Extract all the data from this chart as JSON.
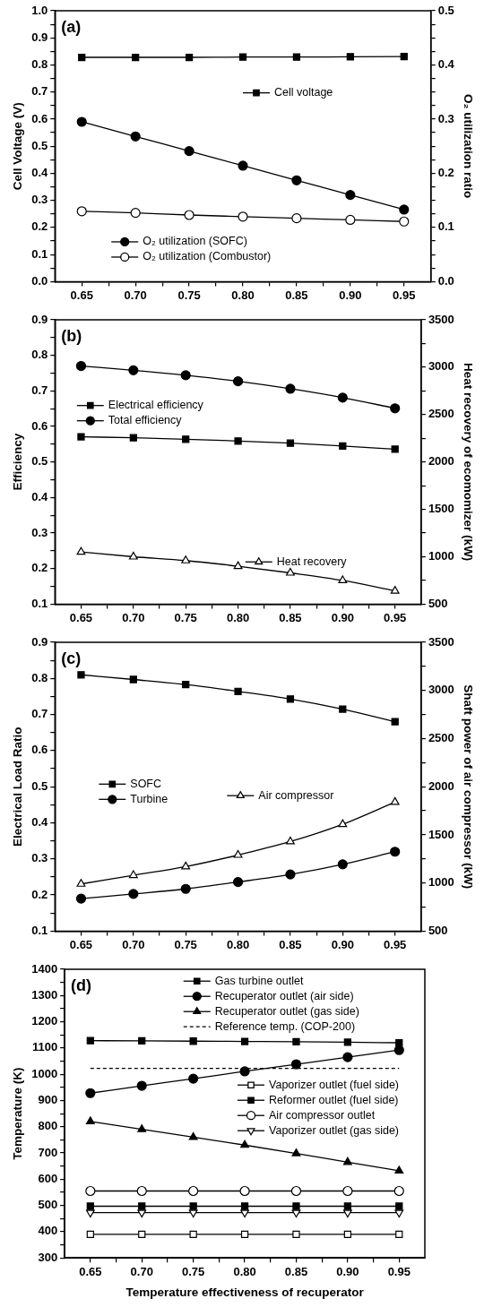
{
  "chart_data": [
    {
      "type": "line",
      "annotations": [
        "(a)"
      ],
      "ylabel": "Cell Voltage (V)",
      "y2label": "O₂ utilization ratio",
      "grid": false,
      "legend": "bottom left",
      "x": [
        0.65,
        0.7,
        0.75,
        0.8,
        0.85,
        0.9,
        0.95
      ],
      "xlim": [
        0.625,
        0.975
      ],
      "xticks": [
        0.65,
        {
          "value": 0.675,
          "label": null
        },
        {
          "value": 0.7,
          "label": "0.70"
        },
        {
          "value": 0.725,
          "label": null
        },
        0.75,
        {
          "value": 0.775,
          "label": null
        },
        {
          "value": 0.8,
          "label": "0.80"
        },
        {
          "value": 0.825,
          "label": null
        },
        0.85,
        {
          "value": 0.875,
          "label": null
        },
        {
          "value": 0.9,
          "label": "0.90"
        },
        {
          "value": 0.925,
          "label": null
        },
        0.95
      ],
      "ylim": [
        0,
        1
      ],
      "yticks": [
        {
          "value": 0,
          "label": "0.0"
        },
        {
          "value": 0.05,
          "label": null
        },
        0.1,
        {
          "value": 0.15,
          "label": null
        },
        0.2,
        {
          "value": 0.25,
          "label": null
        },
        0.3,
        {
          "value": 0.35,
          "label": null
        },
        0.4,
        {
          "value": 0.45,
          "label": null
        },
        0.5,
        {
          "value": 0.55,
          "label": null
        },
        0.6,
        {
          "value": 0.65,
          "label": null
        },
        0.7,
        {
          "value": 0.75,
          "label": null
        },
        0.8,
        {
          "value": 0.85,
          "label": null
        },
        0.9,
        {
          "value": 0.95,
          "label": null
        },
        {
          "value": 1,
          "label": "1.0"
        }
      ],
      "y2lim": [
        0,
        0.5
      ],
      "y2ticks": [
        {
          "value": 0,
          "label": "0.0"
        },
        {
          "value": 0.025,
          "label": null
        },
        {
          "value": 0.05,
          "label": null
        },
        {
          "value": 0.075,
          "label": null
        },
        0.1,
        {
          "value": 0.125,
          "label": null
        },
        {
          "value": 0.15,
          "label": null
        },
        {
          "value": 0.175,
          "label": null
        },
        0.2,
        {
          "value": 0.225,
          "label": null
        },
        {
          "value": 0.25,
          "label": null
        },
        {
          "value": 0.275,
          "label": null
        },
        0.3,
        {
          "value": 0.325,
          "label": null
        },
        {
          "value": 0.35,
          "label": null
        },
        {
          "value": 0.375,
          "label": null
        },
        0.4,
        {
          "value": 0.425,
          "label": null
        },
        {
          "value": 0.45,
          "label": null
        },
        {
          "value": 0.475,
          "label": null
        },
        0.5
      ],
      "series": [
        {
          "name": "Cell voltage",
          "color": "#000000",
          "marker": "square",
          "values": [
            0.828,
            0.828,
            0.828,
            0.829,
            0.829,
            0.83,
            0.831
          ]
        },
        {
          "name": "O₂ utilization (SOFC)",
          "color": "#000000",
          "marker": "circle",
          "axis": "y2",
          "values": [
            0.295,
            0.268,
            0.241,
            0.214,
            0.187,
            0.16,
            0.133
          ]
        },
        {
          "name": "O₂ utilization (Combustor)",
          "color": "#000000",
          "marker": "circle-open",
          "axis": "y2",
          "values": [
            0.13,
            0.127,
            0.123,
            0.12,
            0.117,
            0.114,
            0.111
          ]
        }
      ]
    },
    {
      "type": "line",
      "annotations": [
        "(b)"
      ],
      "ylabel": "Efficiency",
      "y2label": "Heat recovery of ecomomizer (kW)",
      "grid": false,
      "legend": "left",
      "x": [
        0.65,
        0.7,
        0.75,
        0.8,
        0.85,
        0.9,
        0.95
      ],
      "xlim": [
        0.625,
        0.975
      ],
      "xticks": [
        0.65,
        {
          "value": 0.675,
          "label": null
        },
        {
          "value": 0.7,
          "label": "0.70"
        },
        {
          "value": 0.725,
          "label": null
        },
        0.75,
        {
          "value": 0.775,
          "label": null
        },
        {
          "value": 0.8,
          "label": "0.80"
        },
        {
          "value": 0.825,
          "label": null
        },
        0.85,
        {
          "value": 0.875,
          "label": null
        },
        {
          "value": 0.9,
          "label": "0.90"
        },
        {
          "value": 0.925,
          "label": null
        },
        0.95
      ],
      "ylim": [
        0.1,
        0.9
      ],
      "yticks": [
        0.1,
        {
          "value": 0.15,
          "label": null
        },
        0.2,
        {
          "value": 0.25,
          "label": null
        },
        0.3,
        {
          "value": 0.35,
          "label": null
        },
        0.4,
        {
          "value": 0.45,
          "label": null
        },
        0.5,
        {
          "value": 0.55,
          "label": null
        },
        0.6,
        {
          "value": 0.65,
          "label": null
        },
        0.7,
        {
          "value": 0.75,
          "label": null
        },
        0.8,
        {
          "value": 0.85,
          "label": null
        },
        0.9
      ],
      "y2lim": [
        500,
        3500
      ],
      "y2ticks": [
        500,
        {
          "value": 750,
          "label": null
        },
        1000,
        {
          "value": 1250,
          "label": null
        },
        1500,
        {
          "value": 1750,
          "label": null
        },
        2000,
        {
          "value": 2250,
          "label": null
        },
        2500,
        {
          "value": 2750,
          "label": null
        },
        3000,
        {
          "value": 3250,
          "label": null
        },
        3500
      ],
      "series": [
        {
          "name": "Electrical efficiency",
          "color": "#000000",
          "marker": "square",
          "values": [
            0.571,
            0.568,
            0.564,
            0.559,
            0.553,
            0.545,
            0.536
          ]
        },
        {
          "name": "Total efficiency",
          "color": "#000000",
          "marker": "circle",
          "values": [
            0.77,
            0.758,
            0.744,
            0.727,
            0.706,
            0.681,
            0.651
          ]
        },
        {
          "name": "Heat recovery",
          "color": "#000000",
          "marker": "triangle-open",
          "axis": "y2",
          "values": [
            1050,
            1000,
            960,
            900,
            830,
            750,
            640
          ]
        }
      ]
    },
    {
      "type": "line",
      "annotations": [
        "(c)"
      ],
      "ylabel": "Electrical Load Ratio",
      "y2label": "Shaft power of air compressor (kW)",
      "grid": false,
      "legend": "left",
      "x": [
        0.65,
        0.7,
        0.75,
        0.8,
        0.85,
        0.9,
        0.95
      ],
      "xlim": [
        0.625,
        0.975
      ],
      "xticks": [
        0.65,
        {
          "value": 0.675,
          "label": null
        },
        {
          "value": 0.7,
          "label": "0.70"
        },
        {
          "value": 0.725,
          "label": null
        },
        0.75,
        {
          "value": 0.775,
          "label": null
        },
        {
          "value": 0.8,
          "label": "0.80"
        },
        {
          "value": 0.825,
          "label": null
        },
        0.85,
        {
          "value": 0.875,
          "label": null
        },
        {
          "value": 0.9,
          "label": "0.90"
        },
        {
          "value": 0.925,
          "label": null
        },
        0.95
      ],
      "ylim": [
        0.1,
        0.9
      ],
      "yticks": [
        0.1,
        {
          "value": 0.15,
          "label": null
        },
        0.2,
        {
          "value": 0.25,
          "label": null
        },
        0.3,
        {
          "value": 0.35,
          "label": null
        },
        0.4,
        {
          "value": 0.45,
          "label": null
        },
        0.5,
        {
          "value": 0.55,
          "label": null
        },
        0.6,
        {
          "value": 0.65,
          "label": null
        },
        0.7,
        {
          "value": 0.75,
          "label": null
        },
        0.8,
        {
          "value": 0.85,
          "label": null
        },
        0.9
      ],
      "y2lim": [
        500,
        3500
      ],
      "y2ticks": [
        500,
        {
          "value": 750,
          "label": null
        },
        1000,
        {
          "value": 1250,
          "label": null
        },
        1500,
        {
          "value": 1750,
          "label": null
        },
        2000,
        {
          "value": 2250,
          "label": null
        },
        2500,
        {
          "value": 2750,
          "label": null
        },
        3000,
        {
          "value": 3250,
          "label": null
        },
        3500
      ],
      "series": [
        {
          "name": "SOFC",
          "color": "#000000",
          "marker": "square",
          "values": [
            0.81,
            0.797,
            0.783,
            0.764,
            0.743,
            0.715,
            0.68
          ]
        },
        {
          "name": "Turbine",
          "color": "#000000",
          "marker": "circle",
          "values": [
            0.19,
            0.203,
            0.217,
            0.236,
            0.257,
            0.285,
            0.32
          ]
        },
        {
          "name": "Air compressor",
          "color": "#000000",
          "marker": "triangle-open",
          "axis": "y2",
          "values": [
            990,
            1080,
            1170,
            1290,
            1430,
            1610,
            1840
          ]
        }
      ]
    },
    {
      "type": "line",
      "annotations": [
        "(d)"
      ],
      "xlabel": "Temperature effectiveness of recuperator",
      "ylabel": "Temperature (K)",
      "grid": false,
      "legend": "top right",
      "x": [
        0.65,
        0.7,
        0.75,
        0.8,
        0.85,
        0.9,
        0.95
      ],
      "xlim": [
        0.625,
        0.975
      ],
      "xticks": [
        0.65,
        {
          "value": 0.675,
          "label": null
        },
        {
          "value": 0.7,
          "label": "0.70"
        },
        {
          "value": 0.725,
          "label": null
        },
        0.75,
        {
          "value": 0.775,
          "label": null
        },
        {
          "value": 0.8,
          "label": "0.80"
        },
        {
          "value": 0.825,
          "label": null
        },
        0.85,
        {
          "value": 0.875,
          "label": null
        },
        {
          "value": 0.9,
          "label": "0.90"
        },
        {
          "value": 0.925,
          "label": null
        },
        0.95
      ],
      "ylim": [
        300,
        1400
      ],
      "yticks": [
        300,
        {
          "value": 350,
          "label": null
        },
        400,
        {
          "value": 450,
          "label": null
        },
        500,
        {
          "value": 550,
          "label": null
        },
        600,
        {
          "value": 650,
          "label": null
        },
        700,
        {
          "value": 750,
          "label": null
        },
        800,
        {
          "value": 850,
          "label": null
        },
        900,
        {
          "value": 950,
          "label": null
        },
        1000,
        {
          "value": 1050,
          "label": null
        },
        1100,
        {
          "value": 1150,
          "label": null
        },
        1200,
        {
          "value": 1250,
          "label": null
        },
        1300,
        {
          "value": 1350,
          "label": null
        },
        1400
      ],
      "series": [
        {
          "name": "Gas turbine outlet",
          "color": "#000000",
          "marker": "square",
          "values": [
            1128,
            1127,
            1126,
            1125,
            1124,
            1122,
            1120
          ]
        },
        {
          "name": "Recuperator outlet (air side)",
          "color": "#000000",
          "marker": "circle",
          "values": [
            928,
            956,
            983,
            1011,
            1038,
            1065,
            1092
          ]
        },
        {
          "name": "Recuperator outlet (gas side)",
          "color": "#000000",
          "marker": "triangle",
          "values": [
            820,
            790,
            760,
            730,
            698,
            665,
            632
          ]
        },
        {
          "name": "Reference temp. (COP-200)",
          "color": "#000000",
          "marker": "none",
          "line_style": "dashed",
          "x": [
            0.65,
            0.95
          ],
          "values": [
            1022,
            1022
          ]
        },
        {
          "name": "Vaporizer outlet (fuel side)",
          "color": "#000000",
          "marker": "square-open",
          "values": [
            390,
            390,
            390,
            390,
            390,
            390,
            390
          ]
        },
        {
          "name": "Reformer outlet (fuel side)",
          "color": "#000000",
          "marker": "square",
          "values": [
            497,
            497,
            497,
            497,
            497,
            497,
            497
          ]
        },
        {
          "name": "Air compressor outlet",
          "color": "#000000",
          "marker": "circle-open",
          "values": [
            555,
            555,
            555,
            555,
            555,
            555,
            555
          ]
        },
        {
          "name": "Vaporizer outlet (gas side)",
          "color": "#000000",
          "marker": "triangle-down-open",
          "values": [
            473,
            473,
            473,
            473,
            473,
            473,
            473
          ]
        }
      ]
    }
  ]
}
